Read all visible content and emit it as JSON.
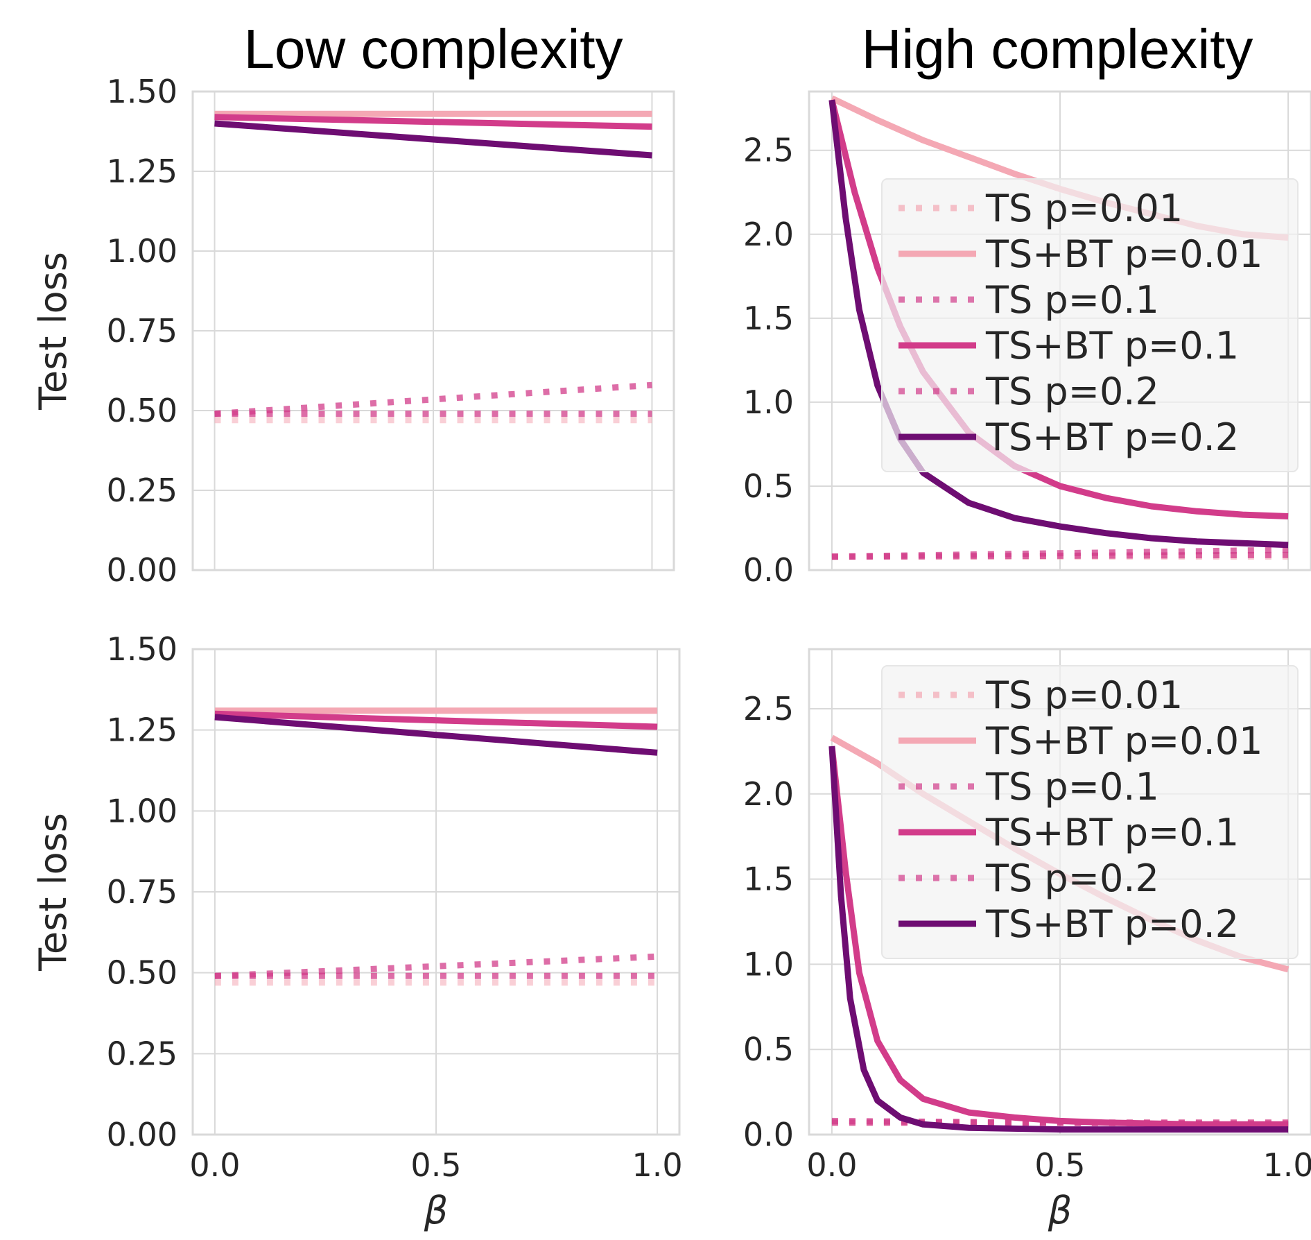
{
  "columns": [
    "Low complexity",
    "High complexity"
  ],
  "colors": {
    "p001": "#f4a8b4",
    "p01": "#d23c8a",
    "p02": "#6e0d72",
    "grid": "#d9d9d9",
    "legend_bg": "#f2f2f2"
  },
  "chart_data": [
    {
      "type": "line",
      "panel": "top-left",
      "title": "Low complexity",
      "xlabel": "",
      "ylabel": "Test loss",
      "xlim": [
        0.0,
        1.0
      ],
      "ylim": [
        0.0,
        1.5
      ],
      "xticks": [],
      "yticks": [
        "0.00",
        "0.25",
        "0.50",
        "0.75",
        "1.00",
        "1.25",
        "1.50"
      ],
      "grid": true,
      "legend": null,
      "series": [
        {
          "name": "TS p=0.01",
          "style": "dotted",
          "color_key": "p001",
          "x": [
            0,
            1
          ],
          "y": [
            0.47,
            0.47
          ]
        },
        {
          "name": "TS+BT p=0.01",
          "style": "solid",
          "color_key": "p001",
          "x": [
            0,
            1
          ],
          "y": [
            1.43,
            1.43
          ]
        },
        {
          "name": "TS p=0.1",
          "style": "dotted",
          "color_key": "p01",
          "x": [
            0,
            1
          ],
          "y": [
            0.49,
            0.49
          ]
        },
        {
          "name": "TS+BT p=0.1",
          "style": "solid",
          "color_key": "p01",
          "x": [
            0,
            1
          ],
          "y": [
            1.42,
            1.39
          ]
        },
        {
          "name": "TS p=0.2",
          "style": "dotted",
          "color_key": "p01",
          "x": [
            0,
            1
          ],
          "y": [
            0.49,
            0.58
          ]
        },
        {
          "name": "TS+BT p=0.2",
          "style": "solid",
          "color_key": "p02",
          "x": [
            0,
            1
          ],
          "y": [
            1.4,
            1.3
          ]
        }
      ]
    },
    {
      "type": "line",
      "panel": "top-right",
      "title": "High complexity",
      "xlabel": "",
      "ylabel": "",
      "xlim": [
        0.0,
        1.0
      ],
      "ylim": [
        0.0,
        2.85
      ],
      "xticks": [],
      "yticks": [
        "0.0",
        "0.5",
        "1.0",
        "1.5",
        "2.0",
        "2.5"
      ],
      "grid": true,
      "legend": "upper-right",
      "legend_entries": [
        "TS p=0.01",
        "TS+BT p=0.01",
        "TS p=0.1",
        "TS+BT p=0.1",
        "TS p=0.2",
        "TS+BT p=0.2"
      ],
      "series": [
        {
          "name": "TS p=0.01",
          "style": "dotted",
          "color_key": "p001",
          "x": [
            0,
            1
          ],
          "y": [
            0.08,
            0.08
          ]
        },
        {
          "name": "TS+BT p=0.01",
          "style": "solid",
          "color_key": "p001",
          "x": [
            0,
            0.1,
            0.2,
            0.3,
            0.4,
            0.5,
            0.6,
            0.7,
            0.8,
            0.9,
            1.0
          ],
          "y": [
            2.81,
            2.68,
            2.56,
            2.46,
            2.36,
            2.27,
            2.19,
            2.12,
            2.05,
            2.0,
            1.98
          ]
        },
        {
          "name": "TS p=0.1",
          "style": "dotted",
          "color_key": "p01",
          "x": [
            0,
            1
          ],
          "y": [
            0.08,
            0.09
          ]
        },
        {
          "name": "TS+BT p=0.1",
          "style": "solid",
          "color_key": "p01",
          "x": [
            0,
            0.05,
            0.1,
            0.15,
            0.2,
            0.3,
            0.4,
            0.5,
            0.6,
            0.7,
            0.8,
            0.9,
            1.0
          ],
          "y": [
            2.8,
            2.25,
            1.8,
            1.45,
            1.18,
            0.82,
            0.62,
            0.5,
            0.43,
            0.38,
            0.35,
            0.33,
            0.32
          ]
        },
        {
          "name": "TS p=0.2",
          "style": "dotted",
          "color_key": "p01",
          "x": [
            0,
            1
          ],
          "y": [
            0.08,
            0.12
          ]
        },
        {
          "name": "TS+BT p=0.2",
          "style": "solid",
          "color_key": "p02",
          "x": [
            0,
            0.03,
            0.06,
            0.1,
            0.15,
            0.2,
            0.3,
            0.4,
            0.5,
            0.6,
            0.7,
            0.8,
            0.9,
            1.0
          ],
          "y": [
            2.8,
            2.1,
            1.55,
            1.1,
            0.78,
            0.58,
            0.4,
            0.31,
            0.26,
            0.22,
            0.19,
            0.17,
            0.16,
            0.15
          ]
        }
      ]
    },
    {
      "type": "line",
      "panel": "bottom-left",
      "title": "",
      "xlabel": "β",
      "ylabel": "Test loss",
      "xlim": [
        0.0,
        1.0
      ],
      "ylim": [
        0.0,
        1.5
      ],
      "xticks": [
        "0.0",
        "0.5",
        "1.0"
      ],
      "yticks": [
        "0.00",
        "0.25",
        "0.50",
        "0.75",
        "1.00",
        "1.25",
        "1.50"
      ],
      "grid": true,
      "legend": null,
      "series": [
        {
          "name": "TS p=0.01",
          "style": "dotted",
          "color_key": "p001",
          "x": [
            0,
            1
          ],
          "y": [
            0.47,
            0.47
          ]
        },
        {
          "name": "TS+BT p=0.01",
          "style": "solid",
          "color_key": "p001",
          "x": [
            0,
            1
          ],
          "y": [
            1.31,
            1.31
          ]
        },
        {
          "name": "TS p=0.1",
          "style": "dotted",
          "color_key": "p01",
          "x": [
            0,
            1
          ],
          "y": [
            0.49,
            0.49
          ]
        },
        {
          "name": "TS+BT p=0.1",
          "style": "solid",
          "color_key": "p01",
          "x": [
            0,
            1
          ],
          "y": [
            1.3,
            1.26
          ]
        },
        {
          "name": "TS p=0.2",
          "style": "dotted",
          "color_key": "p01",
          "x": [
            0,
            1
          ],
          "y": [
            0.49,
            0.55
          ]
        },
        {
          "name": "TS+BT p=0.2",
          "style": "solid",
          "color_key": "p02",
          "x": [
            0,
            1
          ],
          "y": [
            1.29,
            1.18
          ]
        }
      ]
    },
    {
      "type": "line",
      "panel": "bottom-right",
      "title": "",
      "xlabel": "β",
      "ylabel": "",
      "xlim": [
        0.0,
        1.0
      ],
      "ylim": [
        0.0,
        2.85
      ],
      "xticks": [
        "0.0",
        "0.5",
        "1.0"
      ],
      "yticks": [
        "0.0",
        "0.5",
        "1.0",
        "1.5",
        "2.0",
        "2.5"
      ],
      "grid": true,
      "legend": "upper-right",
      "legend_entries": [
        "TS p=0.01",
        "TS+BT p=0.01",
        "TS p=0.1",
        "TS+BT p=0.1",
        "TS p=0.2",
        "TS+BT p=0.2"
      ],
      "series": [
        {
          "name": "TS p=0.01",
          "style": "dotted",
          "color_key": "p001",
          "x": [
            0,
            1
          ],
          "y": [
            0.07,
            0.07
          ]
        },
        {
          "name": "TS+BT p=0.01",
          "style": "solid",
          "color_key": "p001",
          "x": [
            0,
            0.1,
            0.2,
            0.3,
            0.4,
            0.5,
            0.6,
            0.7,
            0.8,
            0.9,
            1.0
          ],
          "y": [
            2.33,
            2.18,
            2.0,
            1.84,
            1.68,
            1.53,
            1.39,
            1.26,
            1.14,
            1.04,
            0.97
          ]
        },
        {
          "name": "TS p=0.1",
          "style": "dotted",
          "color_key": "p01",
          "x": [
            0,
            1
          ],
          "y": [
            0.07,
            0.07
          ]
        },
        {
          "name": "TS+BT p=0.1",
          "style": "solid",
          "color_key": "p01",
          "x": [
            0,
            0.03,
            0.06,
            0.1,
            0.15,
            0.2,
            0.3,
            0.4,
            0.5,
            0.6,
            0.8,
            1.0
          ],
          "y": [
            2.28,
            1.55,
            0.95,
            0.55,
            0.32,
            0.21,
            0.13,
            0.1,
            0.08,
            0.07,
            0.06,
            0.06
          ]
        },
        {
          "name": "TS p=0.2",
          "style": "dotted",
          "color_key": "p01",
          "x": [
            0,
            1
          ],
          "y": [
            0.08,
            0.06
          ]
        },
        {
          "name": "TS+BT p=0.2",
          "style": "solid",
          "color_key": "p02",
          "x": [
            0,
            0.02,
            0.04,
            0.07,
            0.1,
            0.15,
            0.2,
            0.3,
            0.5,
            0.7,
            1.0
          ],
          "y": [
            2.28,
            1.4,
            0.8,
            0.38,
            0.2,
            0.1,
            0.06,
            0.04,
            0.03,
            0.03,
            0.03
          ]
        }
      ]
    }
  ]
}
